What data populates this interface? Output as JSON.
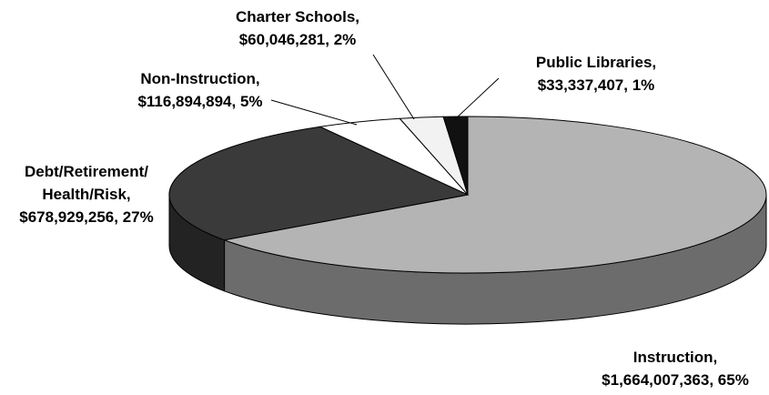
{
  "chart_data": {
    "type": "pie3d",
    "categories": [
      "Instruction,",
      "Debt/Retirement/​Health/Risk,",
      "Non-Instruction,",
      "Charter Schools,",
      "Public Libraries,"
    ],
    "values": [
      1664007363,
      678929256,
      116894894,
      60046281,
      33337407
    ],
    "value_labels": [
      "$1,664,007,363, 65%",
      "$678,929,256, 27%",
      "$116,894,894, 5%",
      "$60,046,281, 2%",
      "$33,337,407, 1%"
    ],
    "colors": [
      "#b4b4b4",
      "#3a3a3a",
      "#ffffff",
      "#f2f2f2",
      "#111111"
    ]
  }
}
